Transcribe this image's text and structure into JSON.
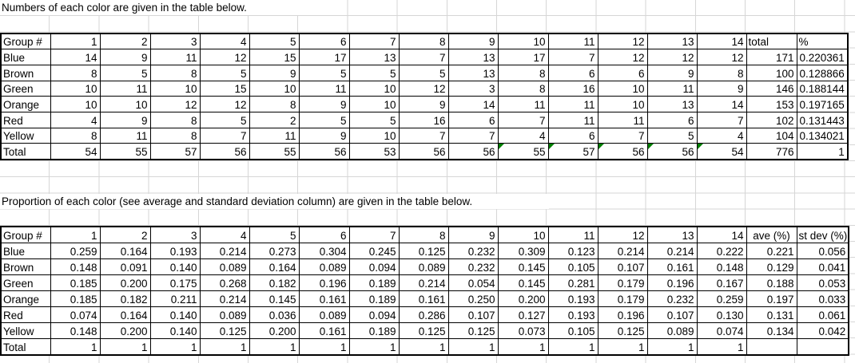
{
  "sheet": {
    "title1": "Numbers of each color are given in the table below.",
    "title2": "Proportion of each color (see average and standard deviation column) are given in the table below."
  },
  "counts_table": {
    "corner": "Group #",
    "groups": [
      "1",
      "2",
      "3",
      "4",
      "5",
      "6",
      "7",
      "8",
      "9",
      "10",
      "11",
      "12",
      "13",
      "14"
    ],
    "total_header": "total",
    "pct_header": "%",
    "error_marker_color": "#008000",
    "rows": [
      {
        "label": "Blue",
        "values": [
          14,
          9,
          11,
          12,
          15,
          17,
          13,
          7,
          13,
          17,
          7,
          12,
          12,
          12
        ],
        "total": "171",
        "pct": "0.220361"
      },
      {
        "label": "Brown",
        "values": [
          8,
          5,
          8,
          5,
          9,
          5,
          5,
          5,
          13,
          8,
          6,
          6,
          9,
          8
        ],
        "total": "100",
        "pct": "0.128866"
      },
      {
        "label": "Green",
        "values": [
          10,
          11,
          10,
          15,
          10,
          11,
          10,
          12,
          3,
          8,
          16,
          10,
          11,
          9
        ],
        "total": "146",
        "pct": "0.188144"
      },
      {
        "label": "Orange",
        "values": [
          10,
          10,
          12,
          12,
          8,
          9,
          10,
          9,
          14,
          11,
          11,
          10,
          13,
          14
        ],
        "total": "153",
        "pct": "0.197165"
      },
      {
        "label": "Red",
        "values": [
          4,
          9,
          8,
          5,
          2,
          5,
          5,
          16,
          6,
          7,
          11,
          11,
          6,
          7
        ],
        "total": "102",
        "pct": "0.131443"
      },
      {
        "label": "Yellow",
        "values": [
          8,
          11,
          8,
          7,
          11,
          9,
          10,
          7,
          7,
          4,
          6,
          7,
          5,
          4
        ],
        "total": "104",
        "pct": "0.134021"
      },
      {
        "label": "Total",
        "values": [
          54,
          55,
          57,
          56,
          55,
          56,
          53,
          56,
          56,
          55,
          57,
          56,
          56,
          54
        ],
        "total": "776",
        "pct": "1",
        "error_marker_groups": [
          10,
          11,
          12,
          13,
          14
        ]
      }
    ]
  },
  "proportions_table": {
    "corner": "Group #",
    "groups": [
      "1",
      "2",
      "3",
      "4",
      "5",
      "6",
      "7",
      "8",
      "9",
      "10",
      "11",
      "12",
      "13",
      "14"
    ],
    "ave_header": "ave (%)",
    "stdev_header": "st dev (%)",
    "rows": [
      {
        "label": "Blue",
        "values": [
          "0.259",
          "0.164",
          "0.193",
          "0.214",
          "0.273",
          "0.304",
          "0.245",
          "0.125",
          "0.232",
          "0.309",
          "0.123",
          "0.214",
          "0.214",
          "0.222"
        ],
        "ave": "0.221",
        "stdev": "0.056"
      },
      {
        "label": "Brown",
        "values": [
          "0.148",
          "0.091",
          "0.140",
          "0.089",
          "0.164",
          "0.089",
          "0.094",
          "0.089",
          "0.232",
          "0.145",
          "0.105",
          "0.107",
          "0.161",
          "0.148"
        ],
        "ave": "0.129",
        "stdev": "0.041"
      },
      {
        "label": "Green",
        "values": [
          "0.185",
          "0.200",
          "0.175",
          "0.268",
          "0.182",
          "0.196",
          "0.189",
          "0.214",
          "0.054",
          "0.145",
          "0.281",
          "0.179",
          "0.196",
          "0.167"
        ],
        "ave": "0.188",
        "stdev": "0.053"
      },
      {
        "label": "Orange",
        "values": [
          "0.185",
          "0.182",
          "0.211",
          "0.214",
          "0.145",
          "0.161",
          "0.189",
          "0.161",
          "0.250",
          "0.200",
          "0.193",
          "0.179",
          "0.232",
          "0.259"
        ],
        "ave": "0.197",
        "stdev": "0.033"
      },
      {
        "label": "Red",
        "values": [
          "0.074",
          "0.164",
          "0.140",
          "0.089",
          "0.036",
          "0.089",
          "0.094",
          "0.286",
          "0.107",
          "0.127",
          "0.193",
          "0.196",
          "0.107",
          "0.130"
        ],
        "ave": "0.131",
        "stdev": "0.061"
      },
      {
        "label": "Yellow",
        "values": [
          "0.148",
          "0.200",
          "0.140",
          "0.125",
          "0.200",
          "0.161",
          "0.189",
          "0.125",
          "0.125",
          "0.073",
          "0.105",
          "0.125",
          "0.089",
          "0.074"
        ],
        "ave": "0.134",
        "stdev": "0.042"
      },
      {
        "label": "Total",
        "values": [
          "1",
          "1",
          "1",
          "1",
          "1",
          "1",
          "1",
          "1",
          "1",
          "1",
          "1",
          "1",
          "1",
          "1"
        ],
        "ave": "",
        "stdev": ""
      }
    ]
  }
}
